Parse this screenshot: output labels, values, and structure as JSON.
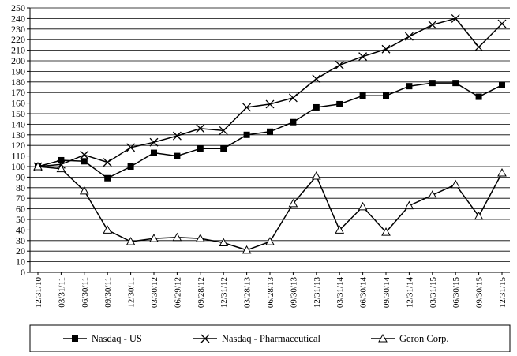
{
  "chart_data": {
    "type": "line",
    "title": "",
    "xlabel": "",
    "ylabel": "",
    "categories": [
      "12/31/10",
      "03/31/11",
      "06/30/11",
      "09/30/11",
      "12/30/11",
      "03/30/12",
      "06/29/12",
      "09/28/12",
      "12/31/12",
      "03/28/13",
      "06/28/13",
      "09/30/13",
      "12/31/13",
      "03/31/14",
      "06/30/14",
      "09/30/14",
      "12/31/14",
      "03/31/15",
      "06/30/15",
      "09/30/15",
      "12/31/15"
    ],
    "ylim": [
      0,
      250
    ],
    "yticks": [
      0,
      10,
      20,
      30,
      40,
      50,
      60,
      70,
      80,
      90,
      100,
      110,
      120,
      130,
      140,
      150,
      160,
      170,
      180,
      190,
      200,
      210,
      220,
      230,
      240,
      250
    ],
    "grid": true,
    "legend_position": "bottom",
    "series": [
      {
        "name": "Nasdaq - US",
        "marker": "square",
        "color": "#000000",
        "values": [
          100,
          106,
          105,
          89,
          100,
          113,
          110,
          117,
          117,
          130,
          133,
          142,
          156,
          159,
          167,
          167,
          176,
          179,
          179,
          166,
          177
        ]
      },
      {
        "name": "Nasdaq - Pharmaceutical",
        "marker": "x",
        "color": "#000000",
        "values": [
          100,
          102,
          111,
          104,
          118,
          123,
          129,
          136,
          134,
          156,
          159,
          165,
          183,
          196,
          204,
          211,
          223,
          234,
          240,
          213,
          235
        ]
      },
      {
        "name": "Geron Corp.",
        "marker": "triangle",
        "color": "#000000",
        "values": [
          100,
          98,
          77,
          40,
          29,
          32,
          33,
          32,
          28,
          21,
          29,
          65,
          91,
          40,
          62,
          38,
          63,
          73,
          83,
          53,
          94
        ]
      }
    ]
  }
}
